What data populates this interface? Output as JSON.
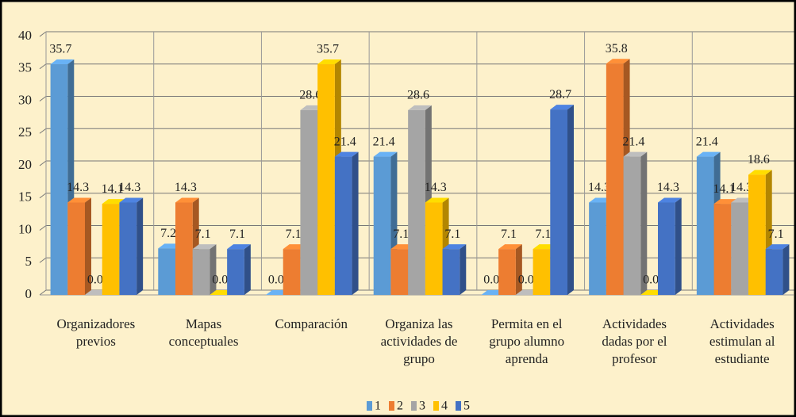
{
  "chart_data": {
    "type": "bar3d",
    "categories": [
      "Organizadores previos",
      "Mapas conceptuales",
      "Comparación",
      "Organiza las actividades de grupo",
      "Permita en el grupo alumno aprenda",
      "Actividades dadas por el profesor",
      "Actividades estimulan al estudiante"
    ],
    "series": [
      {
        "name": "1",
        "color": "#5b9bd5",
        "values": [
          35.7,
          7.2,
          0,
          21.4,
          0,
          14.3,
          21.4
        ],
        "value_labels": [
          "35.7",
          "7.2",
          "0.0",
          "21.4",
          "0.0",
          "14.3",
          "21.4"
        ]
      },
      {
        "name": "2",
        "color": "#ed7d31",
        "values": [
          14.3,
          14.3,
          7.1,
          7.1,
          7.1,
          35.8,
          14.1
        ],
        "value_labels": [
          "14.3",
          "14.3",
          "7.1",
          "7.1",
          "7.1",
          "35.8",
          "14.1"
        ]
      },
      {
        "name": "3",
        "color": "#a5a5a5",
        "values": [
          0,
          7.1,
          28.6,
          28.6,
          0,
          21.4,
          14.3
        ],
        "value_labels": [
          "0.0",
          "7.1",
          "28.6",
          "28.6",
          "0.0",
          "21.4",
          "14.3"
        ]
      },
      {
        "name": "4",
        "color": "#ffc000",
        "values": [
          14.1,
          0,
          35.7,
          14.3,
          7.1,
          0,
          18.6
        ],
        "value_labels": [
          "14.1",
          "0.0",
          "35.7",
          "14.3",
          "7.1",
          "0.0",
          "18.6"
        ]
      },
      {
        "name": "5",
        "color": "#4472c4",
        "values": [
          14.3,
          7.1,
          21.4,
          7.1,
          28.7,
          14.3,
          7.1
        ],
        "value_labels": [
          "14.3",
          "7.1",
          "21.4",
          "7.1",
          "28.7",
          "14.3",
          "7.1"
        ]
      }
    ],
    "ylim": [
      0,
      40
    ],
    "yticks": [
      0,
      5,
      10,
      15,
      20,
      25,
      30,
      35,
      40
    ],
    "grid": true,
    "legend": "bottom"
  }
}
